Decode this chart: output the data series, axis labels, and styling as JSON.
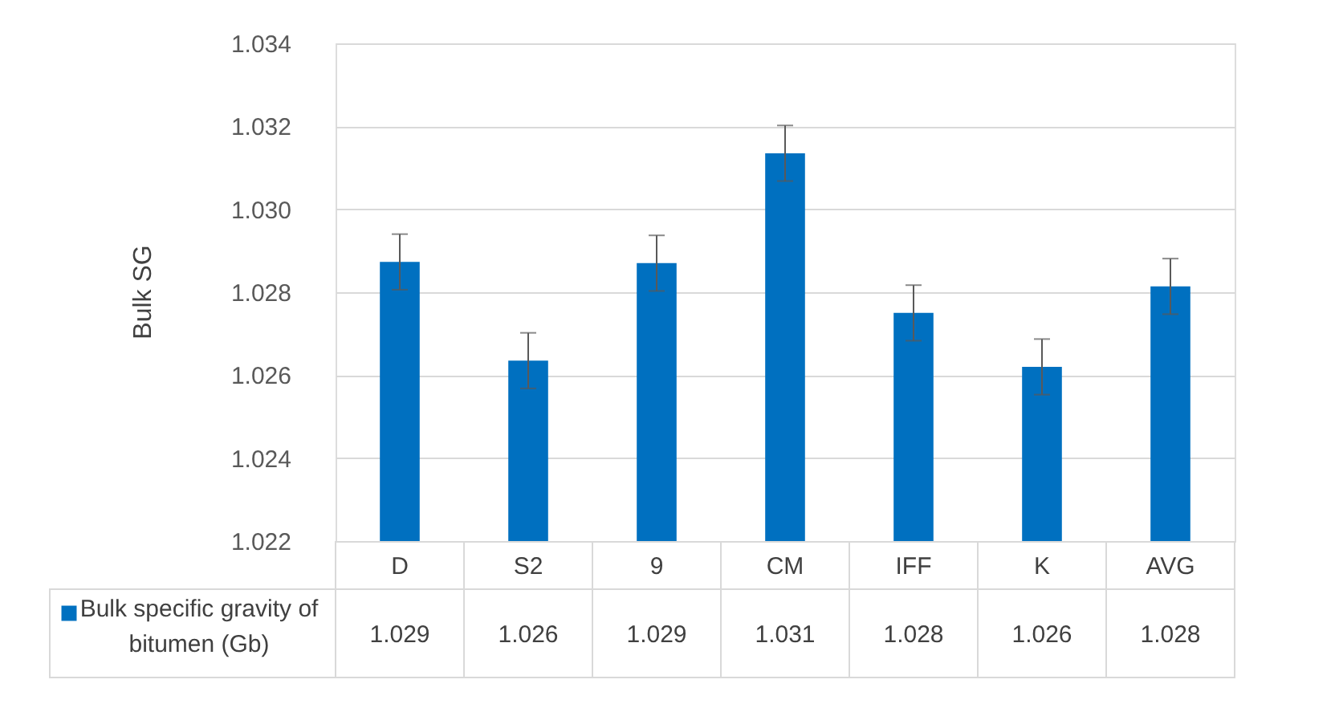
{
  "chart_data": {
    "type": "bar",
    "ylabel": "Bulk SG",
    "categories": [
      "D",
      "S2",
      "9",
      "CM",
      "IFF",
      "K",
      "AVG"
    ],
    "series": [
      {
        "name": "Bulk specific gravity of bitumen (Gb)",
        "color": "#0070c0",
        "values": [
          1.02873,
          1.02635,
          1.0287,
          1.03135,
          1.0275,
          1.0262,
          1.02814
        ],
        "errors": [
          0.00067,
          0.00067,
          0.00067,
          0.00067,
          0.00067,
          0.00067,
          0.00067
        ],
        "value_labels": [
          "1.029",
          "1.026",
          "1.029",
          "1.031",
          "1.028",
          "1.026",
          "1.028"
        ]
      }
    ],
    "ylim": [
      1.022,
      1.034
    ],
    "yticks": [
      1.022,
      1.024,
      1.026,
      1.028,
      {
        "value": 1.03,
        "label": "1.030"
      },
      1.032,
      1.034
    ],
    "grid": "y",
    "legend": "bottom"
  }
}
